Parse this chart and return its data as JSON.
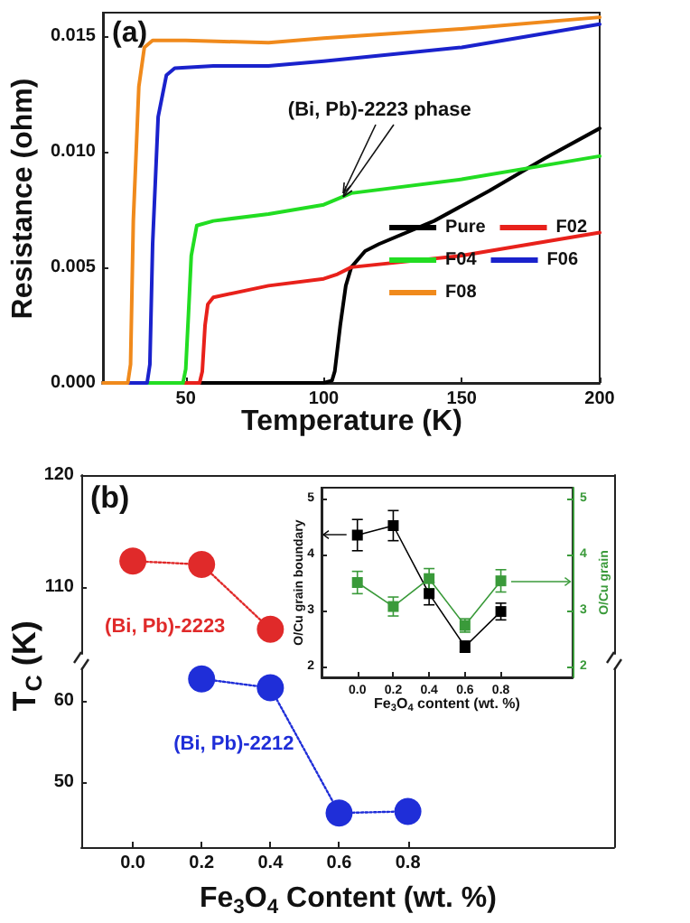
{
  "chart_data": [
    {
      "type": "line",
      "annotations": [
        "(a)",
        {
          "text": "(Bi, Pb)-2223 phase",
          "x": 107,
          "y": 0.0082
        }
      ],
      "xlabel": "Temperature (K)",
      "ylabel": "Resistance (ohm)",
      "xlim": [
        20,
        200
      ],
      "xticks": [
        50,
        100,
        150,
        200
      ],
      "ylim": [
        0,
        0.016
      ],
      "yticks": [
        {
          "value": 0,
          "label": "0.000"
        },
        {
          "value": 0.005,
          "label": "0.005"
        },
        {
          "value": 0.01,
          "label": "0.010"
        },
        {
          "value": 0.015,
          "label": "0.015"
        }
      ],
      "legend": "bottom right",
      "series": [
        {
          "name": "Pure",
          "color": "#000000",
          "x": [
            20,
            100,
            103,
            104,
            106,
            108,
            110,
            115,
            120,
            140,
            160,
            180,
            200
          ],
          "values": [
            0,
            0,
            0.0001,
            0.0005,
            0.0025,
            0.0042,
            0.005,
            0.0057,
            0.006,
            0.007,
            0.0083,
            0.0097,
            0.011
          ]
        },
        {
          "name": "F02",
          "color": "#e8211b",
          "x": [
            20,
            55,
            56,
            57,
            58,
            60,
            80,
            100,
            105,
            110,
            150,
            200
          ],
          "values": [
            0,
            0,
            0.0005,
            0.0025,
            0.0034,
            0.0037,
            0.0042,
            0.0045,
            0.0047,
            0.005,
            0.0055,
            0.0065
          ]
        },
        {
          "name": "F04",
          "color": "#22dd22",
          "x": [
            20,
            49,
            50,
            51,
            52,
            54,
            60,
            80,
            100,
            110,
            150,
            180,
            200
          ],
          "values": [
            0,
            0,
            0.0006,
            0.003,
            0.0055,
            0.0068,
            0.007,
            0.0073,
            0.0077,
            0.0082,
            0.0088,
            0.0094,
            0.0098
          ]
        },
        {
          "name": "F06",
          "color": "#1a22cc",
          "x": [
            20,
            36,
            37,
            38,
            40,
            43,
            46,
            60,
            80,
            100,
            150,
            200
          ],
          "values": [
            0,
            0,
            0.0008,
            0.006,
            0.0115,
            0.0133,
            0.0136,
            0.0137,
            0.0137,
            0.0139,
            0.0145,
            0.0155
          ]
        },
        {
          "name": "F08",
          "color": "#f08a1c",
          "x": [
            20,
            29,
            30,
            31,
            33,
            35,
            38,
            50,
            80,
            100,
            150,
            200
          ],
          "values": [
            0,
            0,
            0.0008,
            0.007,
            0.0128,
            0.0145,
            0.0148,
            0.0148,
            0.0147,
            0.0149,
            0.0153,
            0.0158
          ]
        }
      ]
    },
    {
      "type": "line",
      "annotations": [
        "(b)"
      ],
      "marker": "circle",
      "line_style": "dotted",
      "tick_labels": "y",
      "xlim": [
        -0.15,
        1.4
      ],
      "ylim": [
        104,
        120
      ],
      "yticks": [
        110,
        120
      ],
      "series": [
        {
          "name": "(Bi, Pb)-2223",
          "color": "#e02a2a",
          "x": [
            0,
            0.2,
            0.4
          ],
          "values": [
            112.3,
            112.0,
            106.2
          ]
        }
      ]
    },
    {
      "type": "line",
      "marker": "circle",
      "line_style": "dotted",
      "xlabel": "Fe$_{3}$O$_{4}$ Content (wt. %)",
      "ylabel": "T$_{C}$ (K)",
      "xlim": [
        -0.15,
        1.4
      ],
      "xticks": [
        {
          "value": 0,
          "label": "0.0"
        },
        0.2,
        0.4,
        0.6,
        0.8
      ],
      "ylim": [
        42,
        64
      ],
      "yticks": [
        50,
        60
      ],
      "series": [
        {
          "name": "(Bi, Pb)-2212",
          "color": "#1f2ed8",
          "x": [
            0.2,
            0.4,
            0.6,
            0.8
          ],
          "values": [
            62.7,
            61.6,
            46.2,
            46.4
          ]
        }
      ]
    },
    {
      "type": "line",
      "marker": "square",
      "xlabel": "Fe$_{3}$O$_{4}$ content (wt. %)",
      "ylabel": "O/Cu grain boundary",
      "y2label": "O/Cu grain",
      "xlim": [
        -0.2,
        1.2
      ],
      "xticks": [
        {
          "value": 0,
          "label": "0.0"
        },
        0.2,
        0.4,
        0.6,
        0.8
      ],
      "ylim": [
        1.8,
        5.2
      ],
      "yticks": [
        2,
        3,
        4,
        5
      ],
      "y2lim": [
        1.8,
        5.2
      ],
      "y2ticks": [
        2,
        3,
        4,
        5
      ],
      "series": [
        {
          "color": "#000000",
          "x": [
            0,
            0.2,
            0.4,
            0.6,
            0.8
          ],
          "values": [
            4.35,
            4.52,
            3.3,
            2.35,
            2.98
          ],
          "errors": [
            0.28,
            0.27,
            0.2,
            0.1,
            0.15
          ]
        },
        {
          "color": "#3a9a3a",
          "axis": "y2",
          "x": [
            0,
            0.2,
            0.4,
            0.6,
            0.8
          ],
          "values": [
            3.5,
            3.07,
            3.57,
            2.73,
            3.53
          ],
          "errors": [
            0.2,
            0.17,
            0.18,
            0.12,
            0.2
          ]
        }
      ]
    }
  ]
}
